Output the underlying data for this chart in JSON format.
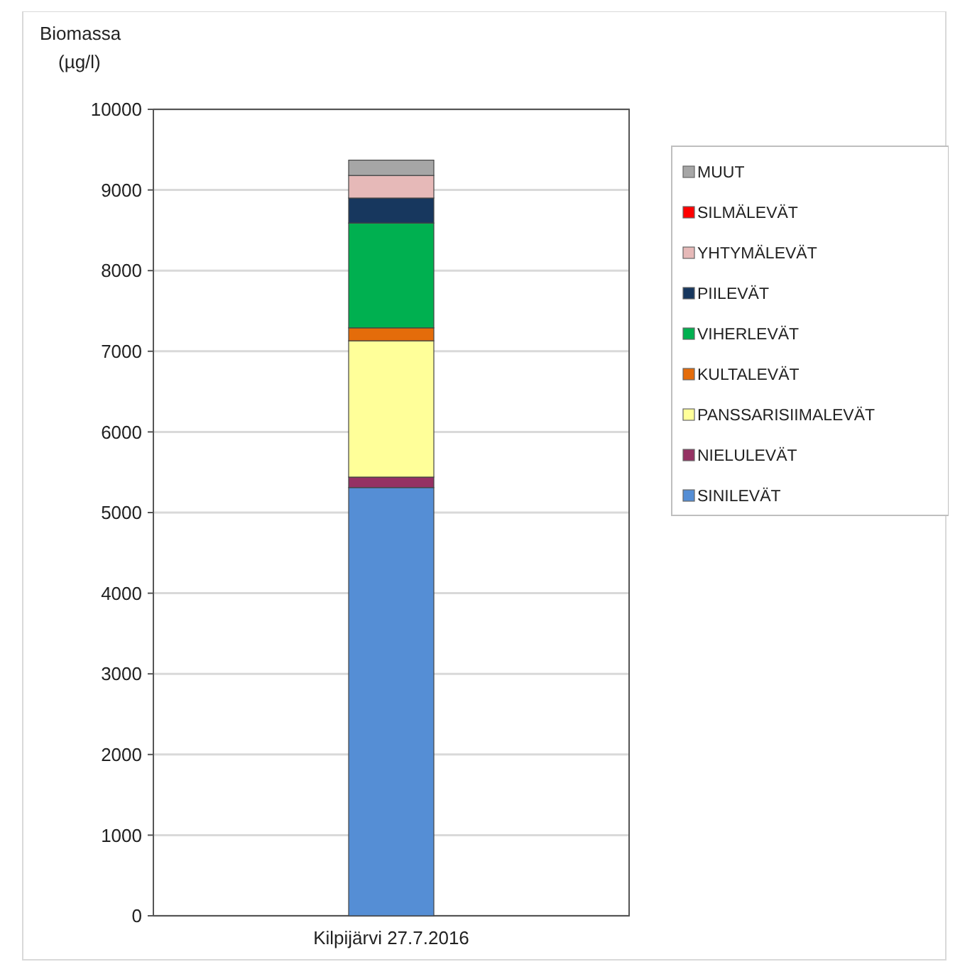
{
  "chart_data": {
    "type": "bar",
    "stacked": true,
    "ylabel": "Biomassa\n(µg/l)",
    "categories": [
      "Kilpijärvi 27.7.2016"
    ],
    "ylim": [
      0,
      10000
    ],
    "yticks": [
      0,
      1000,
      2000,
      3000,
      4000,
      5000,
      6000,
      7000,
      8000,
      9000,
      10000
    ],
    "grid": "y",
    "legend": "right",
    "series": [
      {
        "name": "SINILEVÄT",
        "color": "#558ed5",
        "values": [
          5310
        ]
      },
      {
        "name": "NIELULEVÄT",
        "color": "#953163",
        "values": [
          130
        ]
      },
      {
        "name": "PANSSARISIIMALEVÄT",
        "color": "#ffff99",
        "values": [
          1690
        ]
      },
      {
        "name": "KULTALEVÄT",
        "color": "#e46c0a",
        "values": [
          160
        ]
      },
      {
        "name": "VIHERLEVÄT",
        "color": "#00b050",
        "values": [
          1300
        ]
      },
      {
        "name": "PIILEVÄT",
        "color": "#17375e",
        "values": [
          310
        ]
      },
      {
        "name": "YHTYMÄLEVÄT",
        "color": "#e6b9b8",
        "values": [
          280
        ]
      },
      {
        "name": "SILMÄLEVÄT",
        "color": "#ff0000",
        "values": [
          null
        ]
      },
      {
        "name": "MUUT",
        "color": "#a6a6a6",
        "values": [
          190
        ]
      }
    ]
  }
}
